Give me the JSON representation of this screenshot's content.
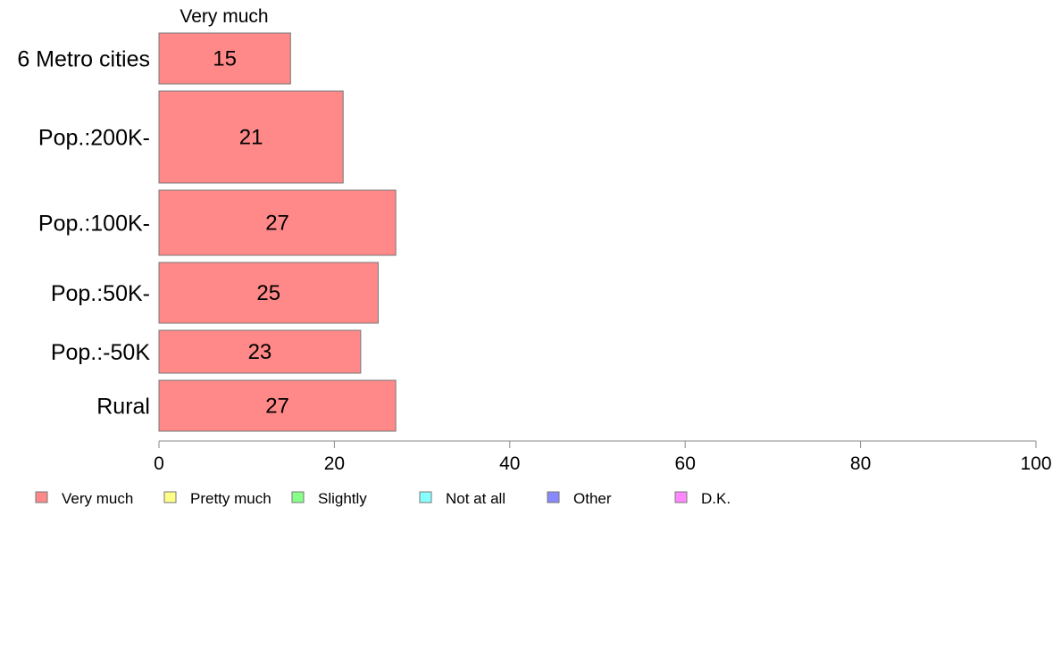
{
  "chart_data": {
    "type": "bar",
    "orientation": "horizontal",
    "stacked": true,
    "segment_header": "Very much",
    "categories": [
      "6 Metro cities",
      "Pop.:200K-",
      "Pop.:100K-",
      "Pop.:50K-",
      "Pop.:-50K",
      "Rural"
    ],
    "series": [
      {
        "name": "Very much",
        "values": [
          15,
          21,
          27,
          25,
          23,
          27
        ]
      }
    ],
    "value_labels": [
      "15",
      "21",
      "27",
      "25",
      "23",
      "27"
    ],
    "xlim": [
      0,
      100
    ],
    "x_ticks": [
      0,
      20,
      40,
      60,
      80,
      100
    ],
    "x_tick_labels": [
      "0",
      "20",
      "40",
      "60",
      "80",
      "100"
    ],
    "legend": {
      "position": "bottom-left",
      "items": [
        {
          "label": "Very much",
          "color": "#ff8888"
        },
        {
          "label": "Pretty much",
          "color": "#ffff88"
        },
        {
          "label": "Slightly",
          "color": "#88ff88"
        },
        {
          "label": "Not at all",
          "color": "#88ffff"
        },
        {
          "label": "Other",
          "color": "#8888ff"
        },
        {
          "label": "D.K.",
          "color": "#ff88ff"
        }
      ]
    },
    "grid": false
  }
}
